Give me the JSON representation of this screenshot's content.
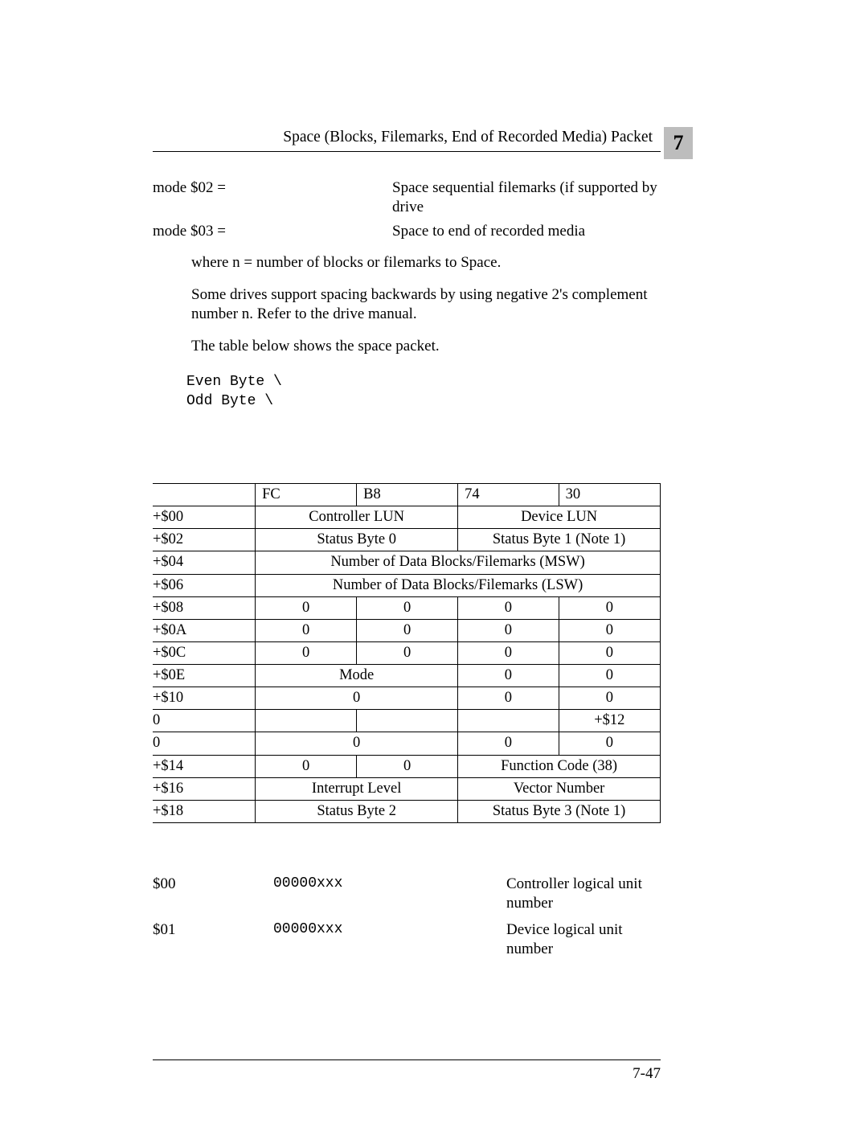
{
  "header": {
    "title": "Space (Blocks, Filemarks, End of Recorded Media) Packet",
    "chapter": "7"
  },
  "modes": [
    {
      "label": "mode $02 =",
      "desc": "Space sequential filemarks (if supported by drive"
    },
    {
      "label": "mode $03 =",
      "desc": "Space to end of recorded media"
    }
  ],
  "paragraphs": {
    "p1": "where n = number of blocks or filemarks to Space.",
    "p2": "Some drives support spacing backwards by using negative 2's complement number n.  Refer to the drive manual.",
    "p3": "The table below shows the space packet."
  },
  "mono_lines": [
    "Even Byte \\",
    "Odd Byte \\"
  ],
  "table": {
    "head": [
      "FC",
      "B8",
      "74",
      "30"
    ],
    "rows": [
      {
        "offset": "+$00",
        "cells": [
          [
            "Controller LUN",
            2
          ],
          [
            "Device LUN",
            2
          ]
        ]
      },
      {
        "offset": "+$02",
        "cells": [
          [
            "Status Byte 0",
            2
          ],
          [
            "Status Byte 1 (Note 1)",
            2
          ]
        ]
      },
      {
        "offset": "+$04",
        "cells": [
          [
            "Number of Data Blocks/Filemarks (MSW)",
            4
          ]
        ]
      },
      {
        "offset": "+$06",
        "cells": [
          [
            "Number of Data Blocks/Filemarks (LSW)",
            4
          ]
        ]
      },
      {
        "offset": "+$08",
        "cells": [
          [
            "0",
            1
          ],
          [
            "0",
            1
          ],
          [
            "0",
            1
          ],
          [
            "0",
            1
          ]
        ]
      },
      {
        "offset": "+$0A",
        "cells": [
          [
            "0",
            1
          ],
          [
            "0",
            1
          ],
          [
            "0",
            1
          ],
          [
            "0",
            1
          ]
        ]
      },
      {
        "offset": "+$0C",
        "cells": [
          [
            "0",
            1
          ],
          [
            "0",
            1
          ],
          [
            "0",
            1
          ],
          [
            "0",
            1
          ]
        ]
      },
      {
        "offset": "+$0E",
        "cells": [
          [
            "Mode",
            2
          ],
          [
            "0",
            1
          ],
          [
            "0",
            1
          ]
        ]
      },
      {
        "offset": "+$10",
        "cells": [
          [
            "0",
            2
          ],
          [
            "0",
            1
          ],
          [
            "0",
            1
          ]
        ]
      },
      {
        "offset": "0",
        "cells": [
          [
            "",
            1
          ],
          [
            "",
            1
          ],
          [
            "",
            1
          ],
          [
            "+$12",
            1
          ]
        ]
      },
      {
        "offset": "0",
        "cells": [
          [
            "0",
            2
          ],
          [
            "0",
            1
          ],
          [
            "0",
            1
          ]
        ]
      },
      {
        "offset": "+$14",
        "cells": [
          [
            "0",
            1
          ],
          [
            "0",
            1
          ],
          [
            "Function Code (38)",
            2
          ]
        ]
      },
      {
        "offset": "+$16",
        "cells": [
          [
            "Interrupt Level",
            2
          ],
          [
            "Vector Number",
            2
          ]
        ]
      },
      {
        "offset": "+$18",
        "cells": [
          [
            "Status Byte 2",
            2
          ],
          [
            "Status Byte 3 (Note 1)",
            2
          ]
        ]
      }
    ]
  },
  "defs": [
    {
      "addr": "$00",
      "bits": "00000xxx",
      "desc": "Controller logical unit number"
    },
    {
      "addr": "$01",
      "bits": "00000xxx",
      "desc": "Device logical unit number"
    }
  ],
  "footer": {
    "page": "7-47"
  }
}
